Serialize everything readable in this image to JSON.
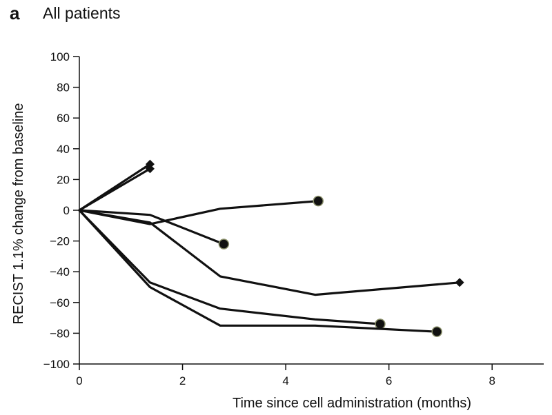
{
  "panel": {
    "letter": "a",
    "title": "All patients"
  },
  "chart_data": {
    "type": "line",
    "xlabel": "Time since cell administration (months)",
    "ylabel": "RECIST 1.1% change from baseline",
    "xlim": [
      0,
      9
    ],
    "ylim": [
      -100,
      100
    ],
    "xticks": [
      0,
      2,
      4,
      6,
      8
    ],
    "yticks": [
      100,
      80,
      60,
      40,
      20,
      0,
      -20,
      -40,
      -60,
      -80,
      -100
    ],
    "grid": false,
    "series": [
      {
        "points": [
          [
            0,
            0
          ],
          [
            1.37,
            30
          ]
        ],
        "end_marker": "diamond"
      },
      {
        "points": [
          [
            0,
            0
          ],
          [
            1.37,
            27
          ]
        ],
        "end_marker": "diamond"
      },
      {
        "points": [
          [
            0,
            0
          ],
          [
            1.37,
            -9
          ],
          [
            2.73,
            1
          ],
          [
            4.63,
            6
          ]
        ],
        "end_marker": "circle"
      },
      {
        "points": [
          [
            0,
            0
          ],
          [
            1.37,
            -3
          ],
          [
            2.8,
            -22
          ]
        ],
        "end_marker": "circle"
      },
      {
        "points": [
          [
            0,
            0
          ],
          [
            1.37,
            -8
          ],
          [
            2.73,
            -43
          ],
          [
            4.57,
            -55
          ],
          [
            7.37,
            -47
          ]
        ],
        "end_marker": "diamond"
      },
      {
        "points": [
          [
            0,
            0
          ],
          [
            1.37,
            -47
          ],
          [
            2.73,
            -64
          ],
          [
            4.57,
            -71
          ],
          [
            5.83,
            -74
          ]
        ],
        "end_marker": "circle"
      },
      {
        "points": [
          [
            0,
            0
          ],
          [
            1.37,
            -50
          ],
          [
            2.73,
            -75
          ],
          [
            4.57,
            -75
          ],
          [
            6.93,
            -79
          ]
        ],
        "end_marker": "circle"
      }
    ]
  }
}
